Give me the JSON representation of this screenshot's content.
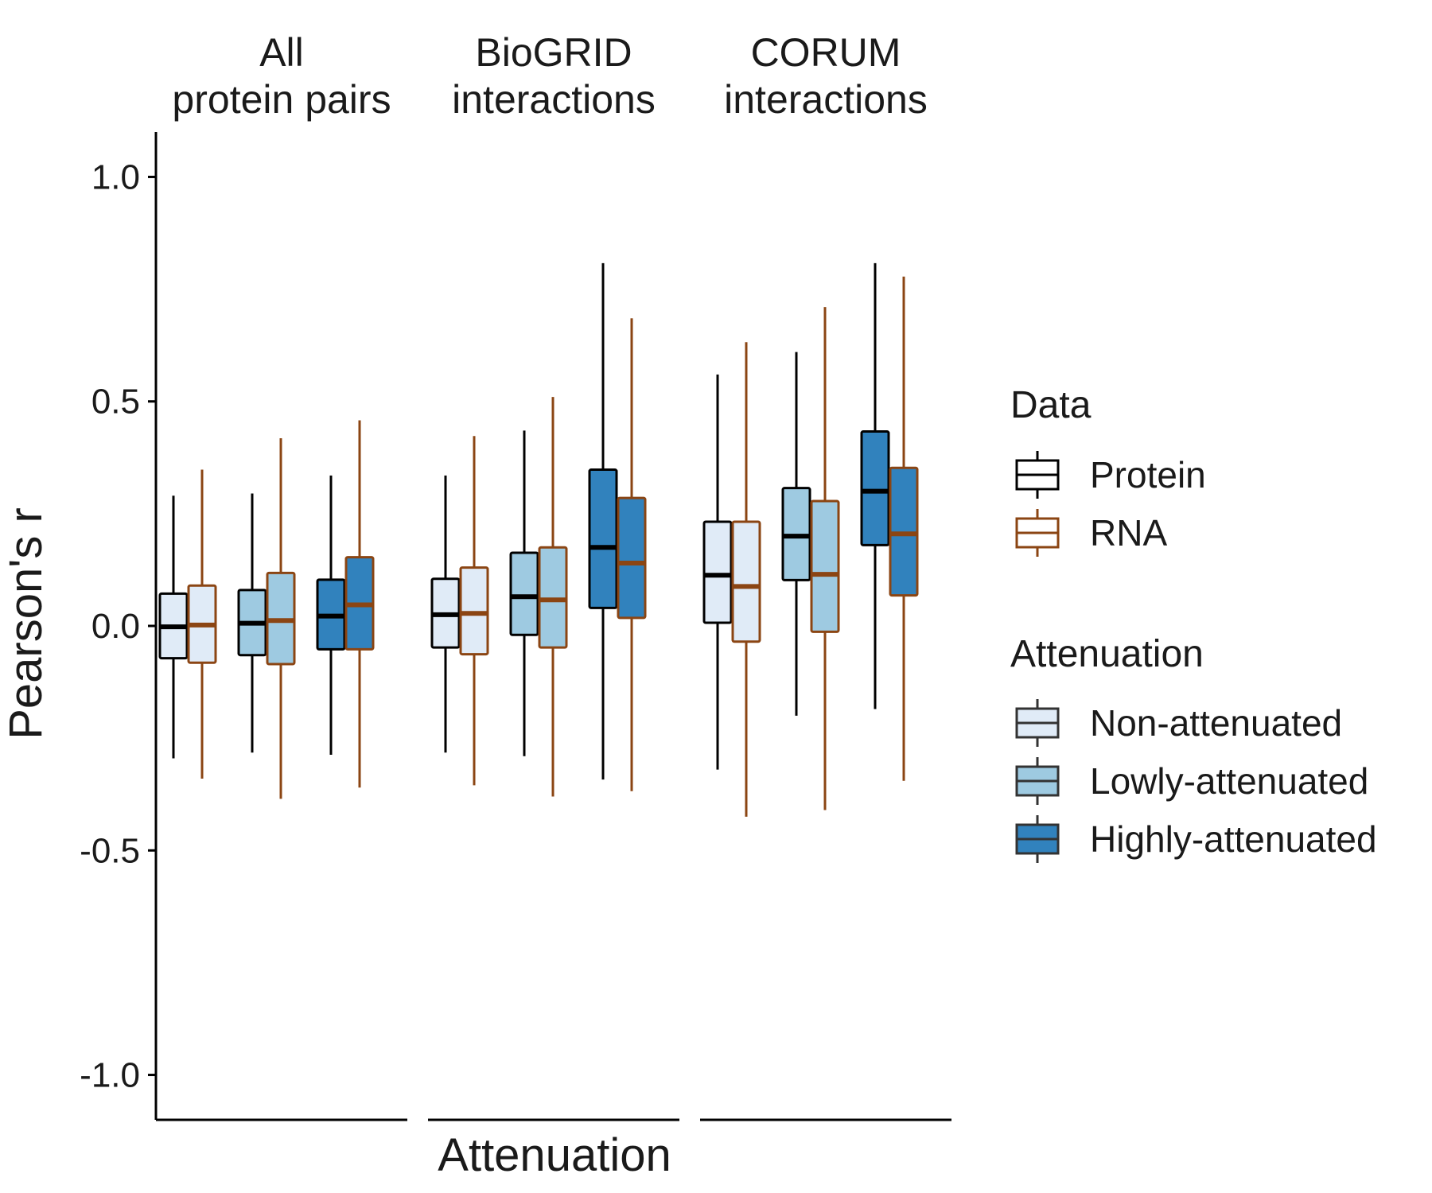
{
  "chart_data": {
    "type": "boxplot",
    "ylabel": "Pearson's r",
    "xlabel": "Attenuation",
    "ylim": [
      -1.1,
      1.1
    ],
    "yticks": [
      1.0,
      0.5,
      0.0,
      -0.5,
      -1.0
    ],
    "ytick_labels": [
      "1.0",
      "0.5",
      "0.0",
      "-0.5",
      "-1.0"
    ],
    "facets": [
      {
        "label_lines": [
          "All",
          "protein pairs"
        ]
      },
      {
        "label_lines": [
          "BioGRID",
          "interactions"
        ]
      },
      {
        "label_lines": [
          "CORUM",
          "interactions"
        ]
      }
    ],
    "attenuation_levels": [
      "Non-attenuated",
      "Lowly-attenuated",
      "Highly-attenuated"
    ],
    "data_types": [
      "Protein",
      "RNA"
    ],
    "colors": {
      "fill": {
        "Non-attenuated": "#e0ebf7",
        "Lowly-attenuated": "#9ecae1",
        "Highly-attenuated": "#3182bd"
      },
      "line": {
        "Protein": "#000000",
        "RNA": "#8b4513"
      }
    },
    "boxes": [
      {
        "facet": 0,
        "attenuation": "Non-attenuated",
        "data": "Protein",
        "whisker_low": -0.295,
        "q1": -0.072,
        "median": -0.002,
        "q3": 0.072,
        "whisker_high": 0.29
      },
      {
        "facet": 0,
        "attenuation": "Non-attenuated",
        "data": "RNA",
        "whisker_low": -0.34,
        "q1": -0.082,
        "median": 0.002,
        "q3": 0.09,
        "whisker_high": 0.348
      },
      {
        "facet": 0,
        "attenuation": "Lowly-attenuated",
        "data": "Protein",
        "whisker_low": -0.282,
        "q1": -0.065,
        "median": 0.006,
        "q3": 0.08,
        "whisker_high": 0.295
      },
      {
        "facet": 0,
        "attenuation": "Lowly-attenuated",
        "data": "RNA",
        "whisker_low": -0.385,
        "q1": -0.085,
        "median": 0.012,
        "q3": 0.118,
        "whisker_high": 0.418
      },
      {
        "facet": 0,
        "attenuation": "Highly-attenuated",
        "data": "Protein",
        "whisker_low": -0.287,
        "q1": -0.052,
        "median": 0.022,
        "q3": 0.103,
        "whisker_high": 0.335
      },
      {
        "facet": 0,
        "attenuation": "Highly-attenuated",
        "data": "RNA",
        "whisker_low": -0.36,
        "q1": -0.052,
        "median": 0.047,
        "q3": 0.153,
        "whisker_high": 0.458
      },
      {
        "facet": 1,
        "attenuation": "Non-attenuated",
        "data": "Protein",
        "whisker_low": -0.282,
        "q1": -0.048,
        "median": 0.025,
        "q3": 0.105,
        "whisker_high": 0.335
      },
      {
        "facet": 1,
        "attenuation": "Non-attenuated",
        "data": "RNA",
        "whisker_low": -0.355,
        "q1": -0.063,
        "median": 0.028,
        "q3": 0.13,
        "whisker_high": 0.423
      },
      {
        "facet": 1,
        "attenuation": "Lowly-attenuated",
        "data": "Protein",
        "whisker_low": -0.29,
        "q1": -0.02,
        "median": 0.065,
        "q3": 0.163,
        "whisker_high": 0.435
      },
      {
        "facet": 1,
        "attenuation": "Lowly-attenuated",
        "data": "RNA",
        "whisker_low": -0.38,
        "q1": -0.048,
        "median": 0.058,
        "q3": 0.175,
        "whisker_high": 0.51
      },
      {
        "facet": 1,
        "attenuation": "Highly-attenuated",
        "data": "Protein",
        "whisker_low": -0.342,
        "q1": 0.04,
        "median": 0.175,
        "q3": 0.348,
        "whisker_high": 0.808
      },
      {
        "facet": 1,
        "attenuation": "Highly-attenuated",
        "data": "RNA",
        "whisker_low": -0.368,
        "q1": 0.018,
        "median": 0.14,
        "q3": 0.285,
        "whisker_high": 0.685
      },
      {
        "facet": 2,
        "attenuation": "Non-attenuated",
        "data": "Protein",
        "whisker_low": -0.32,
        "q1": 0.007,
        "median": 0.113,
        "q3": 0.232,
        "whisker_high": 0.56
      },
      {
        "facet": 2,
        "attenuation": "Non-attenuated",
        "data": "RNA",
        "whisker_low": -0.425,
        "q1": -0.035,
        "median": 0.088,
        "q3": 0.232,
        "whisker_high": 0.632
      },
      {
        "facet": 2,
        "attenuation": "Lowly-attenuated",
        "data": "Protein",
        "whisker_low": -0.2,
        "q1": 0.102,
        "median": 0.2,
        "q3": 0.307,
        "whisker_high": 0.61
      },
      {
        "facet": 2,
        "attenuation": "Lowly-attenuated",
        "data": "RNA",
        "whisker_low": -0.41,
        "q1": -0.013,
        "median": 0.115,
        "q3": 0.278,
        "whisker_high": 0.71
      },
      {
        "facet": 2,
        "attenuation": "Highly-attenuated",
        "data": "Protein",
        "whisker_low": -0.185,
        "q1": 0.18,
        "median": 0.3,
        "q3": 0.433,
        "whisker_high": 0.808
      },
      {
        "facet": 2,
        "attenuation": "Highly-attenuated",
        "data": "RNA",
        "whisker_low": -0.345,
        "q1": 0.068,
        "median": 0.205,
        "q3": 0.352,
        "whisker_high": 0.778
      }
    ],
    "legend": {
      "placement": "right",
      "groups": [
        {
          "title": "Data",
          "entries": [
            "Protein",
            "RNA"
          ]
        },
        {
          "title": "Attenuation",
          "entries": [
            "Non-attenuated",
            "Lowly-attenuated",
            "Highly-attenuated"
          ]
        }
      ]
    }
  }
}
